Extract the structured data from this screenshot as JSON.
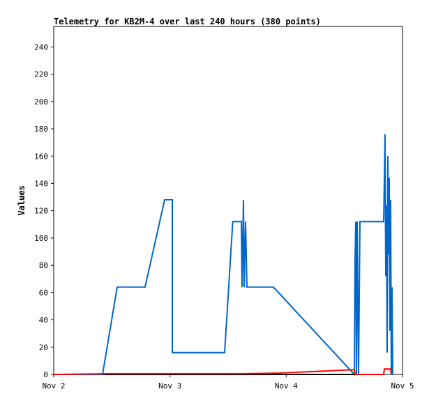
{
  "chart_data": {
    "type": "line",
    "title": "Telemetry for KB2M-4 over last 240 hours (380 points)",
    "y_label": "Values",
    "xlim": [
      0,
      3
    ],
    "ylim": [
      0,
      255
    ],
    "xticks": [
      {
        "value": 0,
        "label": "Nov 2"
      },
      {
        "value": 1,
        "label": "Nov 3"
      },
      {
        "value": 2,
        "label": "Nov 4"
      },
      {
        "value": 3,
        "label": "Nov 5"
      }
    ],
    "yticks": [
      0,
      20,
      40,
      60,
      80,
      100,
      120,
      140,
      160,
      180,
      200,
      220,
      240
    ],
    "grid": false,
    "series": [
      {
        "color": "#000000",
        "x": [
          0,
          2.6
        ],
        "values": [
          0,
          0
        ]
      },
      {
        "color": "#0066cc",
        "x": [
          0,
          0.42,
          0.546,
          0.786,
          0.954,
          1.02,
          1.02,
          1.47,
          1.54,
          1.614,
          1.62,
          1.632,
          1.638,
          1.65,
          1.662,
          1.89,
          2.586,
          2.592,
          2.598,
          2.604,
          2.61,
          2.616,
          2.622,
          2.634,
          2.838,
          2.844,
          2.85,
          2.856,
          2.862,
          2.868,
          2.874,
          2.88,
          2.886,
          2.892,
          2.898,
          2.904,
          2.91,
          2.916
        ],
        "values": [
          0,
          0,
          64,
          64,
          128,
          128,
          16,
          16,
          112,
          112,
          64,
          128,
          64,
          112,
          64,
          64,
          0,
          84,
          112,
          0,
          112,
          56,
          0,
          112,
          112,
          144,
          176,
          72,
          124,
          16,
          160,
          88,
          144,
          32,
          128,
          0,
          64,
          0
        ]
      },
      {
        "color": "#ff0000",
        "x": [
          0,
          0.47,
          1.02,
          1.614,
          1.94,
          2.586,
          2.592,
          2.838,
          2.844,
          2.898,
          2.904
        ],
        "values": [
          0,
          0.5,
          0.5,
          0.5,
          1,
          3.5,
          0,
          0,
          4,
          4,
          0
        ]
      }
    ]
  }
}
